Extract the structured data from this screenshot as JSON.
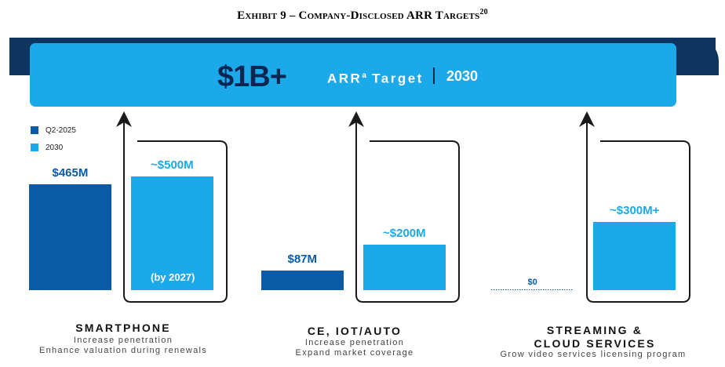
{
  "exhibit": {
    "title": "Exhibit 9 – Company-Disclosed ARR Targets",
    "footnote": "20"
  },
  "target": {
    "value": "$1B+",
    "label": "ARR",
    "label_superscript": "a",
    "label_suffix": " Target",
    "year": "2030"
  },
  "chart_data": {
    "type": "bar",
    "title": "$1B+ ARR Target 2030",
    "categories": [
      "Smartphone",
      "CE, IoT/Auto",
      "Streaming & Cloud Services"
    ],
    "series": [
      {
        "name": "Q2-2025",
        "values": [
          465,
          87,
          0
        ]
      },
      {
        "name": "2030",
        "values": [
          500,
          200,
          300
        ]
      }
    ],
    "units": "$M",
    "data_labels": {
      "Q2-2025": [
        "$465M",
        "$87M",
        "$0"
      ],
      "2030": [
        "~$500M",
        "~$200M",
        "~$300M+"
      ]
    },
    "annotations": [
      "(by 2027)"
    ],
    "colors": {
      "Q2-2025": "#0b5aa6",
      "2030": "#1ba9ea"
    },
    "legend_position": "top-left"
  },
  "legend": [
    {
      "label": "Q2-2025",
      "color": "#0b5aa6"
    },
    {
      "label": "2030",
      "color": "#1ba9ea"
    }
  ],
  "segments": [
    {
      "title_lines": [
        "SMARTPHONE"
      ],
      "desc_lines": [
        "Increase penetration",
        "Enhance valuation during renewals"
      ]
    },
    {
      "title_lines": [
        "CE, IOT/AUTO"
      ],
      "desc_lines": [
        "Increase penetration",
        "Expand market coverage"
      ]
    },
    {
      "title_lines": [
        "STREAMING &",
        "CLOUD SERVICES"
      ],
      "desc_lines": [
        "Grow video services licensing program"
      ]
    }
  ]
}
